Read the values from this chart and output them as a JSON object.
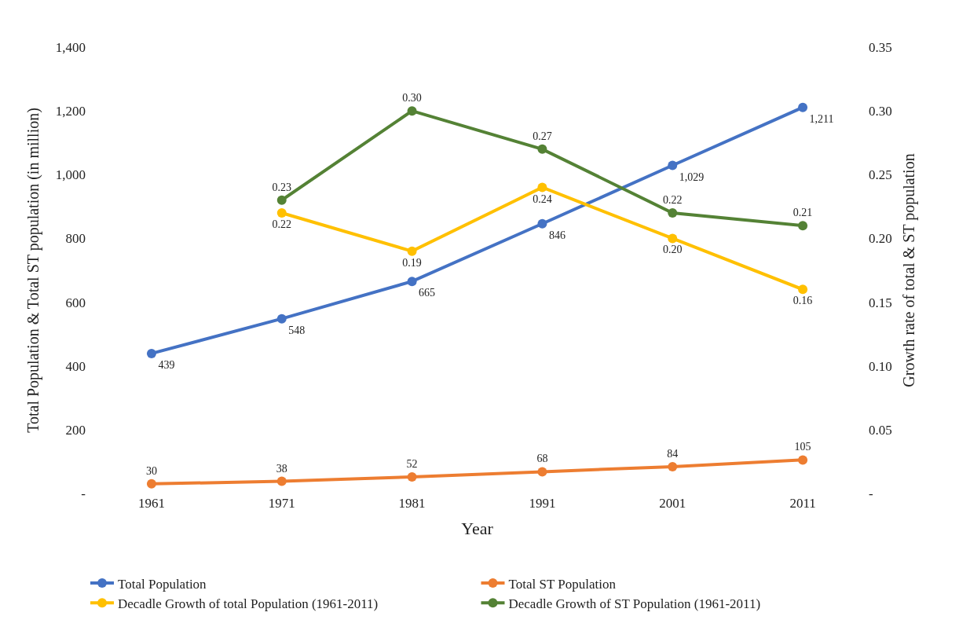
{
  "chart_data": {
    "type": "line",
    "categories": [
      "1961",
      "1971",
      "1981",
      "1991",
      "2001",
      "2011"
    ],
    "xlabel": "Year",
    "ylabel": "Total Population & Total ST population (in million)",
    "y2label": "Growth rate of total & ST population",
    "series": [
      {
        "name": "Total Population",
        "color": "#4472c4",
        "axis": "y",
        "values": [
          439,
          548,
          665,
          846,
          1029,
          1211
        ],
        "value_labels": [
          "439",
          "548",
          "665",
          "846",
          "1,029",
          "1,211"
        ]
      },
      {
        "name": "Total ST Population",
        "color": "#ed7d31",
        "axis": "y",
        "values": [
          30,
          38,
          52,
          68,
          84,
          105
        ],
        "value_labels": [
          "30",
          "38",
          "52",
          "68",
          "84",
          "105"
        ]
      },
      {
        "name": "Decadle Growth of total Population (1961-2011)",
        "color": "#ffc000",
        "axis": "y2",
        "values": [
          null,
          0.22,
          0.19,
          0.24,
          0.2,
          0.16
        ],
        "value_labels": [
          null,
          "0.22",
          "0.19",
          "0.24",
          "0.20",
          "0.16"
        ]
      },
      {
        "name": "Decadle Growth of ST Population (1961-2011)",
        "color": "#548235",
        "axis": "y2",
        "values": [
          null,
          0.23,
          0.3,
          0.27,
          0.22,
          0.21
        ],
        "value_labels": [
          null,
          "0.23",
          "0.30",
          "0.27",
          "0.22",
          "0.21"
        ]
      }
    ],
    "ylim": [
      0,
      1400
    ],
    "yticks": [
      {
        "value": 0,
        "label": "-"
      },
      200,
      400,
      600,
      800,
      {
        "value": 1000,
        "label": "1,000"
      },
      {
        "value": 1200,
        "label": "1,200"
      },
      {
        "value": 1400,
        "label": "1,400"
      }
    ],
    "y2lim": [
      0,
      0.35
    ],
    "y2ticks": [
      {
        "value": 0,
        "label": "-"
      },
      0.05,
      {
        "value": 0.1,
        "label": "0.10"
      },
      0.15,
      {
        "value": 0.2,
        "label": "0.20"
      },
      0.25,
      {
        "value": 0.3,
        "label": "0.30"
      },
      0.35
    ],
    "legend": "bottom",
    "marker": "circle",
    "line_style": "solid"
  }
}
